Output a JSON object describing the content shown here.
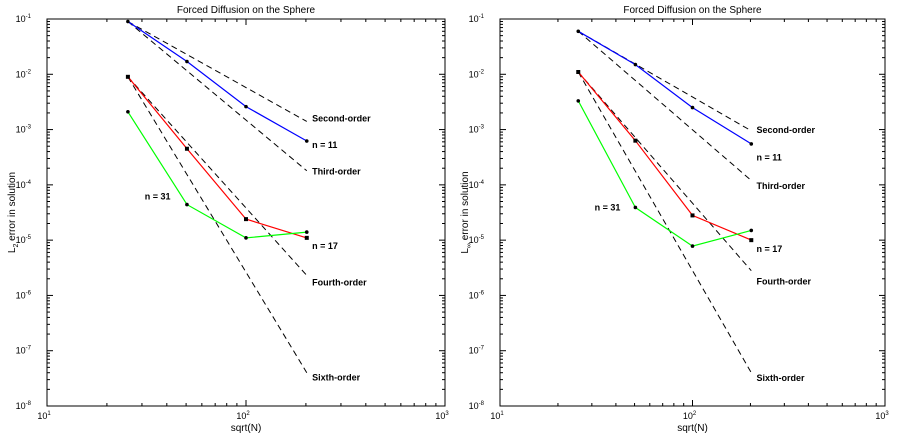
{
  "chart_data": [
    {
      "type": "line",
      "title": "Forced Diffusion on the Sphere",
      "xlabel": "sqrt(N)",
      "ylabel_parts": [
        "L",
        "2",
        " error in solution"
      ],
      "xscale": "log",
      "yscale": "log",
      "xlim": [
        10,
        1000
      ],
      "ylim": [
        1e-08,
        0.1
      ],
      "x_ticks": [
        {
          "value": 10,
          "base": "10",
          "exp": "1"
        },
        {
          "value": 100,
          "base": "10",
          "exp": "2"
        },
        {
          "value": 1000,
          "base": "10",
          "exp": "3"
        }
      ],
      "y_ticks": [
        {
          "value": 1e-08,
          "base": "10",
          "exp": "-8"
        },
        {
          "value": 1e-07,
          "base": "10",
          "exp": "-7"
        },
        {
          "value": 1e-06,
          "base": "10",
          "exp": "-6"
        },
        {
          "value": 1e-05,
          "base": "10",
          "exp": "-5"
        },
        {
          "value": 0.0001,
          "base": "10",
          "exp": "-4"
        },
        {
          "value": 0.001,
          "base": "10",
          "exp": "-3"
        },
        {
          "value": 0.01,
          "base": "10",
          "exp": "-2"
        },
        {
          "value": 0.1,
          "base": "10",
          "exp": "-1"
        }
      ],
      "series": [
        {
          "name": "n = 11",
          "color": "#0000ff",
          "marker": "dot",
          "x": [
            25.5,
            50.5,
            100,
            202
          ],
          "y": [
            0.09,
            0.017,
            0.0026,
            0.00062
          ]
        },
        {
          "name": "n = 17",
          "color": "#ff0000",
          "marker": "square",
          "x": [
            25.5,
            50.5,
            100,
            202
          ],
          "y": [
            0.009,
            0.00045,
            2.4e-05,
            1.1e-05
          ]
        },
        {
          "name": "n = 31",
          "color": "#00ff00",
          "marker": "dot",
          "x": [
            25.5,
            50.5,
            100,
            202
          ],
          "y": [
            0.0021,
            4.4e-05,
            1.1e-05,
            1.4e-05
          ]
        }
      ],
      "reference_lines": [
        {
          "name": "Second-order",
          "x": [
            25.5,
            202
          ],
          "y": [
            0.09,
            0.0014
          ]
        },
        {
          "name": "Third-order",
          "x": [
            25.5,
            202
          ],
          "y": [
            0.09,
            0.00018
          ]
        },
        {
          "name": "Fourth-order",
          "x": [
            25.5,
            202
          ],
          "y": [
            0.009,
            2.3e-06
          ]
        },
        {
          "name": "Sixth-order",
          "x": [
            25.5,
            202
          ],
          "y": [
            0.009,
            4e-08
          ]
        }
      ],
      "annotations": [
        {
          "text": "Second-order",
          "x": 215,
          "y": 0.0016
        },
        {
          "text": "n = 11",
          "x": 215,
          "y": 0.00053
        },
        {
          "text": "Third-order",
          "x": 215,
          "y": 0.000175
        },
        {
          "text": "n = 31",
          "x": 31,
          "y": 6.1e-05
        },
        {
          "text": "n = 17",
          "x": 215,
          "y": 7.9e-06
        },
        {
          "text": "Fourth-order",
          "x": 215,
          "y": 1.7e-06
        },
        {
          "text": "Sixth-order",
          "x": 215,
          "y": 3.3e-08
        }
      ],
      "grid": false
    },
    {
      "type": "line",
      "title": "Forced Diffusion on the Sphere",
      "xlabel": "sqrt(N)",
      "ylabel_parts": [
        "L",
        "∞",
        " error in solution"
      ],
      "xscale": "log",
      "yscale": "log",
      "xlim": [
        10,
        1000
      ],
      "ylim": [
        1e-08,
        0.1
      ],
      "x_ticks": [
        {
          "value": 10,
          "base": "10",
          "exp": "1"
        },
        {
          "value": 100,
          "base": "10",
          "exp": "2"
        },
        {
          "value": 1000,
          "base": "10",
          "exp": "3"
        }
      ],
      "y_ticks": [
        {
          "value": 1e-08,
          "base": "10",
          "exp": "-8"
        },
        {
          "value": 1e-07,
          "base": "10",
          "exp": "-7"
        },
        {
          "value": 1e-06,
          "base": "10",
          "exp": "-6"
        },
        {
          "value": 1e-05,
          "base": "10",
          "exp": "-5"
        },
        {
          "value": 0.0001,
          "base": "10",
          "exp": "-4"
        },
        {
          "value": 0.001,
          "base": "10",
          "exp": "-3"
        },
        {
          "value": 0.01,
          "base": "10",
          "exp": "-2"
        },
        {
          "value": 0.1,
          "base": "10",
          "exp": "-1"
        }
      ],
      "series": [
        {
          "name": "n = 11",
          "color": "#0000ff",
          "marker": "dot",
          "x": [
            25.5,
            50.5,
            100,
            202
          ],
          "y": [
            0.06,
            0.015,
            0.0025,
            0.00055
          ]
        },
        {
          "name": "n = 17",
          "color": "#ff0000",
          "marker": "square",
          "x": [
            25.5,
            50.5,
            100,
            202
          ],
          "y": [
            0.011,
            0.00063,
            2.8e-05,
            1e-05
          ]
        },
        {
          "name": "n = 31",
          "color": "#00ff00",
          "marker": "dot",
          "x": [
            25.5,
            50.5,
            100,
            202
          ],
          "y": [
            0.0033,
            3.9e-05,
            7.8e-06,
            1.5e-05
          ]
        }
      ],
      "reference_lines": [
        {
          "name": "Second-order",
          "x": [
            25.5,
            202
          ],
          "y": [
            0.06,
            0.00095
          ]
        },
        {
          "name": "Third-order",
          "x": [
            25.5,
            202
          ],
          "y": [
            0.06,
            0.00012
          ]
        },
        {
          "name": "Fourth-order",
          "x": [
            25.5,
            202
          ],
          "y": [
            0.011,
            2.8e-06
          ]
        },
        {
          "name": "Sixth-order",
          "x": [
            25.5,
            202
          ],
          "y": [
            0.011,
            4e-08
          ]
        }
      ],
      "annotations": [
        {
          "text": "Second-order",
          "x": 215,
          "y": 0.00099
        },
        {
          "text": "n = 11",
          "x": 215,
          "y": 0.00031
        },
        {
          "text": "Third-order",
          "x": 215,
          "y": 9.5e-05
        },
        {
          "text": "n = 31",
          "x": 31,
          "y": 3.9e-05
        },
        {
          "text": "n = 17",
          "x": 215,
          "y": 6.9e-06
        },
        {
          "text": "Fourth-order",
          "x": 215,
          "y": 1.8e-06
        },
        {
          "text": "Sixth-order",
          "x": 215,
          "y": 3.2e-08
        }
      ],
      "grid": false
    }
  ]
}
